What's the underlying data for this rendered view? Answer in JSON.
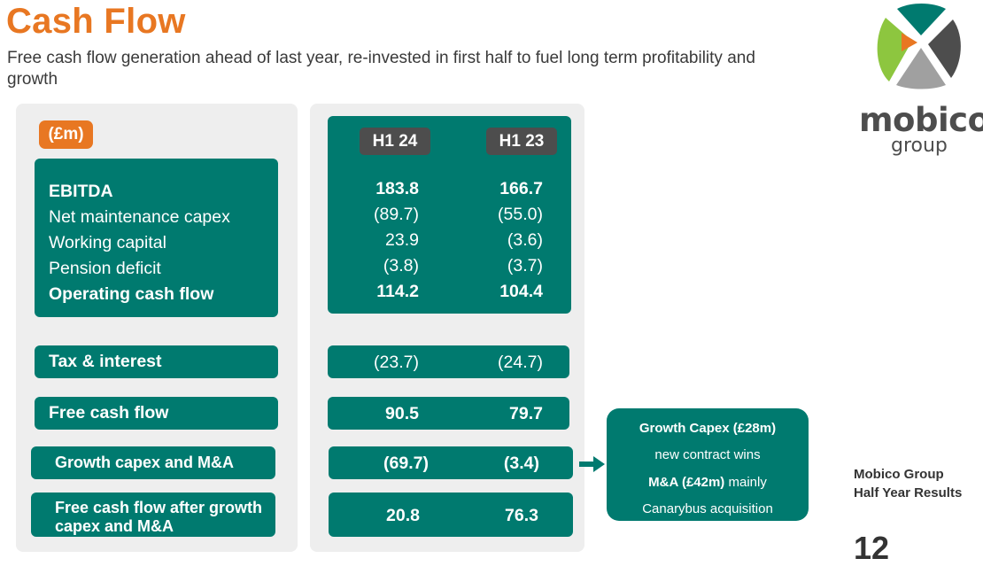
{
  "header": {
    "title": "Cash Flow",
    "subtitle": "Free cash flow generation ahead of last year, re-invested in first half to fuel long term profitability and growth"
  },
  "unit_label": "(£m)",
  "columns": [
    "H1 24",
    "H1 23"
  ],
  "ebitda_block": {
    "rows": [
      {
        "label": "EBITDA",
        "h1_24": "183.8",
        "h1_23": "166.7",
        "bold": true
      },
      {
        "label": "Net maintenance capex",
        "h1_24": "(89.7)",
        "h1_23": "(55.0)",
        "bold": false
      },
      {
        "label": "Working capital",
        "h1_24": "23.9",
        "h1_23": "(3.6)",
        "bold": false
      },
      {
        "label": "Pension deficit",
        "h1_24": "(3.8)",
        "h1_23": "(3.7)",
        "bold": false
      },
      {
        "label": "Operating cash flow",
        "h1_24": "114.2",
        "h1_23": "104.4",
        "bold": true
      }
    ]
  },
  "summary_rows": [
    {
      "label": "Tax & interest",
      "h1_24": "(23.7)",
      "h1_23": "(24.7)"
    },
    {
      "label": "Free cash flow",
      "h1_24": "90.5",
      "h1_23": "79.7"
    },
    {
      "label": "Growth capex and M&A",
      "h1_24": "(69.7)",
      "h1_23": "(3.4)"
    },
    {
      "label_line1": "Free cash flow after growth",
      "label_line2": "capex and M&A",
      "h1_24": "20.8",
      "h1_23": "76.3"
    }
  ],
  "callout": {
    "line1": "Growth Capex (£28m)",
    "line2": "new contract wins",
    "line3_bold": "M&A (£42m)",
    "line3_rest": " mainly",
    "line4": "Canarybus acquisition"
  },
  "logo": {
    "word1": "mobico",
    "word2": "group",
    "colors": {
      "teal": "#007a6f",
      "lime": "#8dc63f",
      "orange": "#e87722",
      "grey": "#a0a0a0",
      "dark": "#4d4d4d"
    }
  },
  "footer": {
    "line1": "Mobico Group",
    "line2": "Half Year Results",
    "page_number": "12"
  },
  "colors": {
    "accent_orange": "#e87722",
    "teal": "#007a6f",
    "header_grey": "#4d4d4d",
    "panel_bg": "#eeeeee"
  }
}
